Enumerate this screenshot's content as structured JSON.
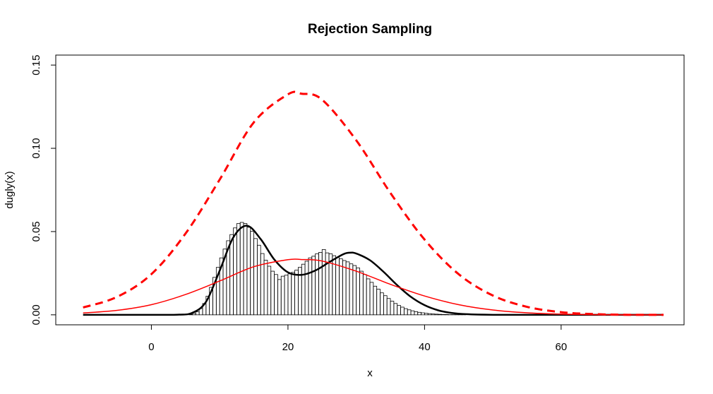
{
  "chart_data": {
    "type": "histogram",
    "title": "Rejection Sampling",
    "xlabel": "x",
    "ylabel": "dugly(x)",
    "xlim": [
      -14,
      78
    ],
    "ylim": [
      -0.006,
      0.156
    ],
    "x_ticks": [
      0,
      20,
      40,
      60
    ],
    "x_tick_labels": [
      "0",
      "20",
      "40",
      "60"
    ],
    "y_ticks": [
      0.0,
      0.05,
      0.1,
      0.15
    ],
    "y_tick_labels": [
      "0.00",
      "0.05",
      "0.10",
      "0.15"
    ],
    "grid": false,
    "legend": "none",
    "histogram": {
      "bin_width": 0.5,
      "bin_start": 5.5,
      "density": [
        0.0003,
        0.0008,
        0.0018,
        0.0038,
        0.0068,
        0.0112,
        0.0165,
        0.0225,
        0.0285,
        0.0342,
        0.0395,
        0.0445,
        0.0482,
        0.0522,
        0.0548,
        0.0555,
        0.0548,
        0.0526,
        0.0502,
        0.0458,
        0.0418,
        0.0368,
        0.0328,
        0.0292,
        0.0262,
        0.0242,
        0.0212,
        0.0232,
        0.0238,
        0.0246,
        0.0255,
        0.0268,
        0.0285,
        0.0304,
        0.0322,
        0.0342,
        0.0352,
        0.0366,
        0.0375,
        0.0392,
        0.0372,
        0.0366,
        0.0355,
        0.0345,
        0.0336,
        0.0326,
        0.0318,
        0.0306,
        0.0296,
        0.0282,
        0.0262,
        0.0242,
        0.0216,
        0.0195,
        0.0172,
        0.0154,
        0.0132,
        0.0115,
        0.0098,
        0.0082,
        0.0068,
        0.0056,
        0.0046,
        0.0037,
        0.003,
        0.0024,
        0.0019,
        0.0015,
        0.0012,
        0.0009,
        0.0007,
        0.0005,
        0.0004,
        0.0003,
        0.0002,
        0.0002,
        0.0001,
        0.0001,
        0.0001,
        0.0001,
        0.0001
      ],
      "color": "#000000"
    },
    "series": [
      {
        "style": "solid",
        "color": "#000000",
        "width": 2.5,
        "x": [
          -10,
          0,
          4,
          6,
          8,
          10,
          12,
          14,
          16,
          18,
          20,
          22,
          24,
          26,
          28,
          29,
          30,
          32,
          34,
          36,
          38,
          40,
          42,
          44,
          46,
          50,
          55,
          60,
          65,
          70,
          75
        ],
        "y": [
          0.0,
          0.0,
          0.0001,
          0.0012,
          0.0078,
          0.0265,
          0.0465,
          0.0535,
          0.0455,
          0.0332,
          0.0255,
          0.024,
          0.0266,
          0.0315,
          0.0362,
          0.0373,
          0.0368,
          0.0328,
          0.0258,
          0.0178,
          0.0108,
          0.0058,
          0.0027,
          0.0011,
          0.0004,
          0.0,
          0.0,
          0.0,
          0.0,
          0.0,
          0.0
        ]
      },
      {
        "style": "solid",
        "color": "#ff0000",
        "width": 1.5,
        "x": [
          -10,
          -5,
          0,
          5,
          10,
          15,
          20,
          22,
          25,
          30,
          35,
          40,
          45,
          50,
          55,
          60,
          65,
          70,
          75
        ],
        "y": [
          0.0011,
          0.0027,
          0.0061,
          0.0122,
          0.0203,
          0.0289,
          0.0331,
          0.0332,
          0.0323,
          0.0262,
          0.0183,
          0.0113,
          0.0061,
          0.0029,
          0.0012,
          0.0004,
          0.0001,
          0.0,
          0.0
        ]
      },
      {
        "style": "dashed",
        "color": "#ff0000",
        "width": 3,
        "x": [
          -10,
          -5,
          0,
          5,
          10,
          15,
          20,
          22,
          25,
          30,
          35,
          40,
          45,
          50,
          55,
          60,
          65,
          70,
          75
        ],
        "y": [
          0.0044,
          0.0108,
          0.0244,
          0.0488,
          0.0812,
          0.1156,
          0.1324,
          0.1328,
          0.1292,
          0.1048,
          0.0732,
          0.0452,
          0.0244,
          0.0116,
          0.0048,
          0.0016,
          0.0004,
          0.0,
          0.0
        ]
      }
    ]
  }
}
